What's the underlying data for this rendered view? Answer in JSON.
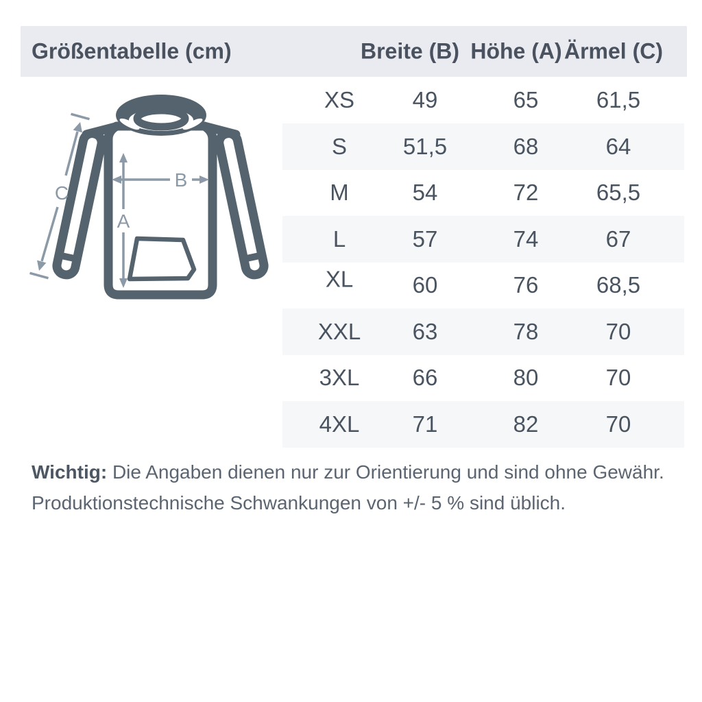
{
  "title": "Größentabelle (cm)",
  "header": {
    "columns": [
      "Breite (B)",
      "Höhe (A)",
      "Ärmel (C)"
    ]
  },
  "table": {
    "rows": [
      {
        "size": "XS",
        "breite": "49",
        "hoehe": "65",
        "aermel": "61,5"
      },
      {
        "size": "S",
        "breite": "51,5",
        "hoehe": "68",
        "aermel": "64"
      },
      {
        "size": "M",
        "breite": "54",
        "hoehe": "72",
        "aermel": "65,5"
      },
      {
        "size": "L",
        "breite": "57",
        "hoehe": "74",
        "aermel": "67"
      },
      {
        "size": "XL",
        "breite": "60",
        "hoehe": "76",
        "aermel": "68,5"
      },
      {
        "size": "XXL",
        "breite": "63",
        "hoehe": "78",
        "aermel": "70"
      },
      {
        "size": "3XL",
        "breite": "66",
        "hoehe": "80",
        "aermel": "70"
      },
      {
        "size": "4XL",
        "breite": "71",
        "hoehe": "82",
        "aermel": "70"
      }
    ]
  },
  "diagram": {
    "labels": {
      "a": "A",
      "b": "B",
      "c": "C"
    },
    "icon": "hoodie-outline-with-dimension-arrows"
  },
  "footer": {
    "bold": "Wichtig:",
    "line1_rest": " Die Angaben dienen nur zur Orientierung und sind ohne Gewähr.",
    "line2": "Produktionstechnische Schwankungen von +/- 5 % sind üblich."
  },
  "colors": {
    "band_bg": "#e9ebf1",
    "stripe_bg": "#f6f7f9",
    "text": "#4a5460",
    "footer_text": "#5b6571",
    "outline": "#54636d",
    "arrow": "#8c99a6"
  }
}
